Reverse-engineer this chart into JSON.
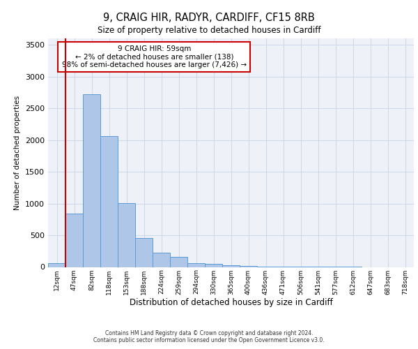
{
  "title_line1": "9, CRAIG HIR, RADYR, CARDIFF, CF15 8RB",
  "title_line2": "Size of property relative to detached houses in Cardiff",
  "xlabel": "Distribution of detached houses by size in Cardiff",
  "ylabel": "Number of detached properties",
  "bar_labels": [
    "12sqm",
    "47sqm",
    "82sqm",
    "118sqm",
    "153sqm",
    "188sqm",
    "224sqm",
    "259sqm",
    "294sqm",
    "330sqm",
    "365sqm",
    "400sqm",
    "436sqm",
    "471sqm",
    "506sqm",
    "541sqm",
    "577sqm",
    "612sqm",
    "647sqm",
    "683sqm",
    "718sqm"
  ],
  "bar_values": [
    55,
    840,
    2720,
    2060,
    1010,
    460,
    230,
    155,
    65,
    45,
    30,
    20,
    10,
    8,
    5,
    3,
    2,
    1,
    0,
    0,
    0
  ],
  "bar_color": "#aec6e8",
  "bar_edge_color": "#5b9bd5",
  "vline_color": "#cc0000",
  "vline_x_index": 1,
  "annotation_text": "9 CRAIG HIR: 59sqm\n← 2% of detached houses are smaller (138)\n98% of semi-detached houses are larger (7,426) →",
  "annotation_box_color": "#ffffff",
  "annotation_box_edge": "#cc0000",
  "ylim": [
    0,
    3600
  ],
  "yticks": [
    0,
    500,
    1000,
    1500,
    2000,
    2500,
    3000,
    3500
  ],
  "grid_color": "#d0d8e8",
  "background_color": "#eef2f8",
  "footer_line1": "Contains HM Land Registry data © Crown copyright and database right 2024.",
  "footer_line2": "Contains public sector information licensed under the Open Government Licence v3.0."
}
